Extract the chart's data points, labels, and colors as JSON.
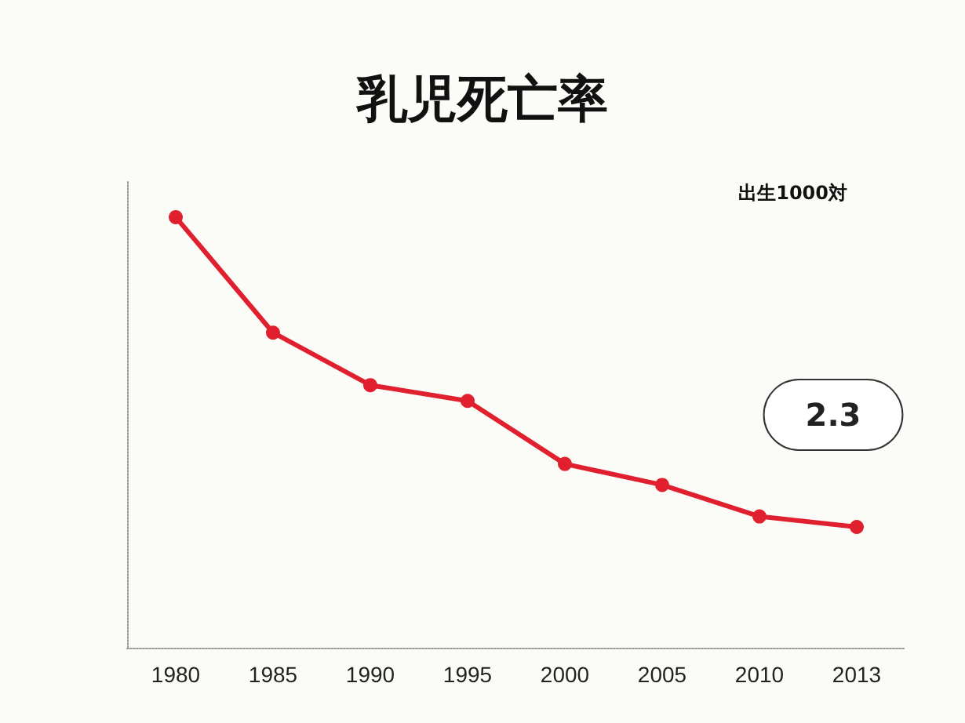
{
  "chart_data": {
    "type": "line",
    "title": "乳児死亡率",
    "annotations": [
      "出生1000対"
    ],
    "categories": [
      "1980",
      "1985",
      "1990",
      "1995",
      "2000",
      "2005",
      "2010",
      "2013"
    ],
    "series": [
      {
        "color": "#e0202e",
        "values": [
          8.2,
          6.0,
          5.0,
          4.7,
          3.5,
          3.1,
          2.5,
          2.3
        ],
        "value_labels": [
          null,
          null,
          null,
          null,
          null,
          null,
          null,
          "2.3"
        ]
      }
    ],
    "ylim": [
      0,
      8.9
    ],
    "tick_labels": "x",
    "marker": "circle",
    "line_style": "solid",
    "grid": false
  }
}
